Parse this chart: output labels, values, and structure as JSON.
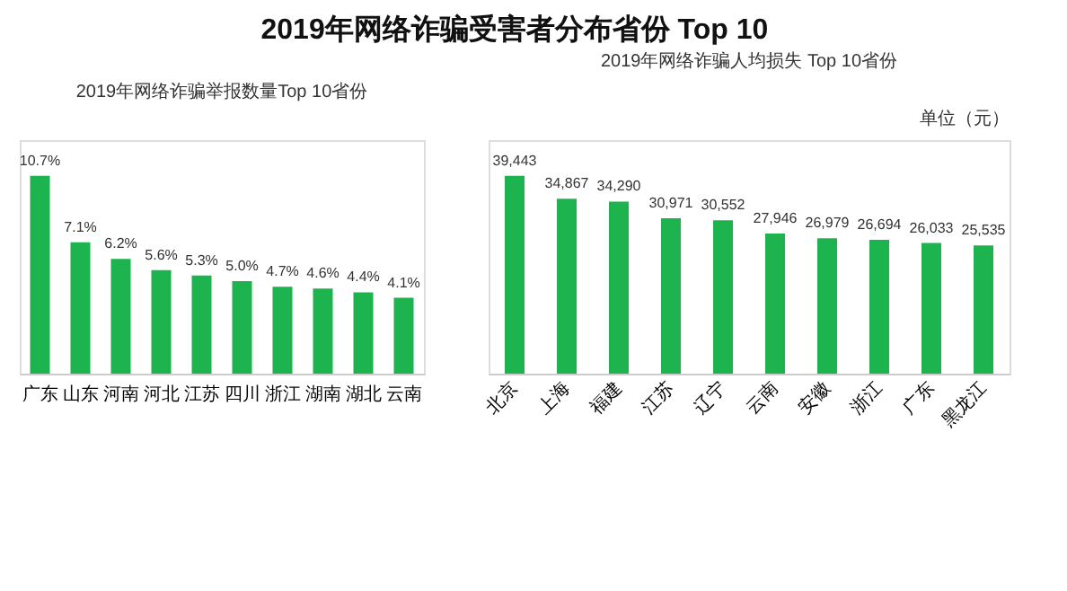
{
  "chart_data": [
    {
      "type": "bar",
      "title": "2019年网络诈骗受害者分布省份 Top 10",
      "subtitle": "2019年网络诈骗举报数量Top 10省份",
      "categories": [
        "广东",
        "山东",
        "河南",
        "河北",
        "江苏",
        "四川",
        "浙江",
        "湖南",
        "湖北",
        "云南"
      ],
      "values": [
        10.7,
        7.1,
        6.2,
        5.6,
        5.3,
        5.0,
        4.7,
        4.6,
        4.4,
        4.1
      ],
      "value_labels": [
        "10.7%",
        "7.1%",
        "6.2%",
        "5.6%",
        "5.3%",
        "5.0%",
        "4.7%",
        "4.6%",
        "4.4%",
        "4.1%"
      ],
      "color": "#1db34e",
      "grid": false
    },
    {
      "type": "bar",
      "title": "2019年网络诈骗人均损失 Top 10省份",
      "annotations": [
        "单位（元）"
      ],
      "categories": [
        "北京",
        "上海",
        "福建",
        "江苏",
        "辽宁",
        "云南",
        "安徽",
        "浙江",
        "广东",
        "黑龙江"
      ],
      "values": [
        39443,
        34867,
        34290,
        30971,
        30552,
        27946,
        26979,
        26694,
        26033,
        25535
      ],
      "value_labels": [
        "39,443",
        "34,867",
        "34,290",
        "30,971",
        "30,552",
        "27,946",
        "26,979",
        "26,694",
        "26,033",
        "25,535"
      ],
      "color": "#1db34e",
      "grid": false
    }
  ]
}
